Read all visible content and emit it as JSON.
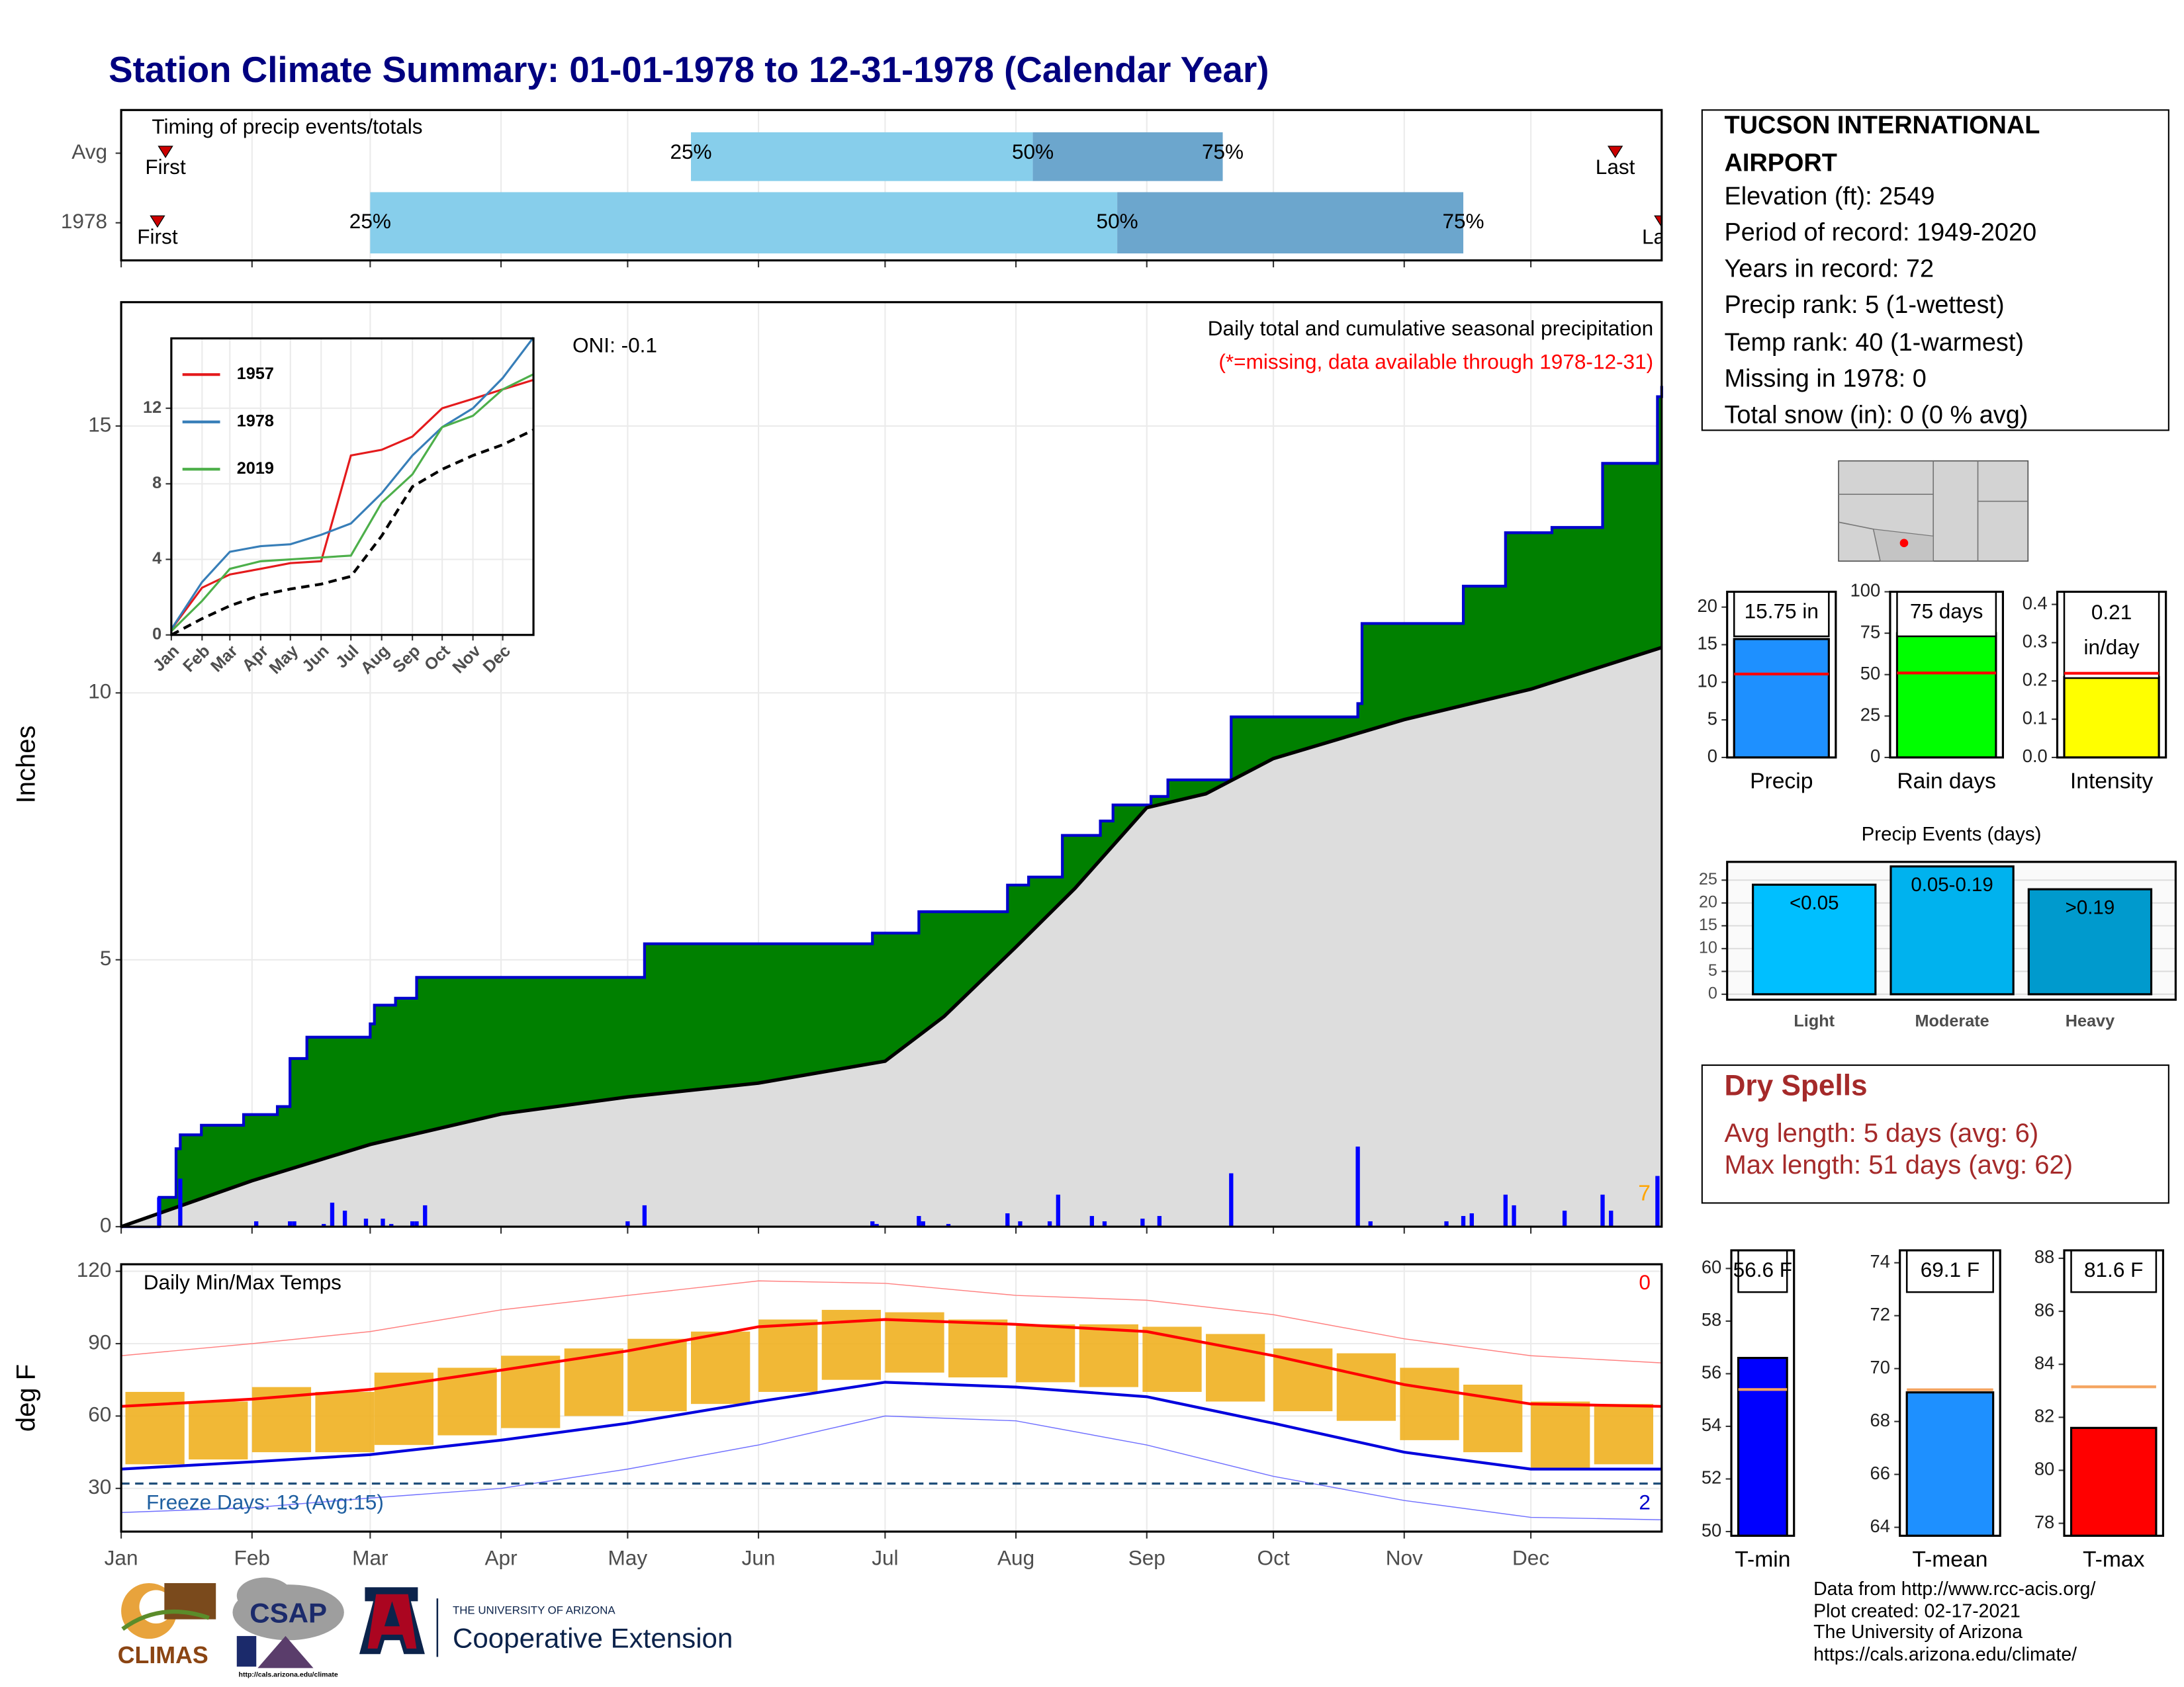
{
  "title": "Station Climate Summary: 01-01-1978 to 12-31-1978 (Calendar Year)",
  "station": {
    "name_lines": [
      "TUCSON INTERNATIONAL",
      "AIRPORT"
    ],
    "lines": [
      "Elevation (ft): 2549",
      "Period of record: 1949-2020",
      "Years in record: 72",
      "Precip rank: 5 (1-wettest)",
      "Temp rank: 40 (1-warmest)",
      "Missing in 1978: 0",
      "Total snow (in): 0 (0 % avg)"
    ]
  },
  "dry_spells": {
    "title": "Dry Spells",
    "lines": [
      "Avg length: 5 days (avg: 6)",
      "Max length: 51 days (avg: 62)"
    ]
  },
  "credits": [
    "Data from http://www.rcc-acis.org/",
    "Plot created: 02-17-2021",
    "The University of Arizona",
    "https://cals.arizona.edu/climate/"
  ],
  "logos": {
    "climas": "CLIMAS",
    "csap": "CSAP",
    "csap_url": "http://cals.arizona.edu/climate",
    "university": "THE UNIVERSITY OF ARIZONA",
    "extension": "Cooperative Extension"
  },
  "chart_data": [
    {
      "type": "timing",
      "title": "Timing of precip events/totals",
      "xlim": [
        0,
        365
      ],
      "rows": [
        "Avg",
        "1978"
      ],
      "first": [
        10.5,
        8.6
      ],
      "q25": [
        135,
        59
      ],
      "q50": [
        216,
        236
      ],
      "q75": [
        261,
        318
      ],
      "last": [
        354,
        365
      ],
      "labels": {
        "first": "First",
        "last": "Last",
        "q25": "25%",
        "q50": "50%",
        "q75": "75%"
      },
      "colors": [
        "#87ceeb",
        "#6ca6cd"
      ],
      "marker_color": "#cc0000"
    },
    {
      "type": "cumulative",
      "title": "Daily total and cumulative seasonal precipitation",
      "note": "(*=missing, data available through 1978-12-31)",
      "annotation": "ONI: -0.1",
      "records": "7",
      "ylabel": "Inches",
      "xlim": [
        0,
        365
      ],
      "ylim": [
        0,
        17.32
      ],
      "yticks": [
        0,
        5,
        10,
        15
      ],
      "grid": true,
      "series": [
        {
          "color": "#008000",
          "line_color": "#0000cd",
          "x": [
            0,
            9,
            13,
            14,
            19,
            29,
            37,
            40,
            44,
            59,
            60,
            65,
            70,
            124,
            178,
            189,
            210,
            215,
            223,
            232,
            235,
            244,
            248,
            263,
            293,
            294,
            318,
            328,
            339,
            351,
            364,
            365
          ],
          "values": [
            0,
            0.55,
            1.46,
            1.72,
            1.9,
            2.1,
            2.25,
            3.15,
            3.55,
            3.8,
            4.15,
            4.28,
            4.67,
            5.3,
            5.5,
            5.9,
            6.4,
            6.55,
            7.33,
            7.6,
            7.9,
            8.06,
            8.37,
            9.55,
            9.8,
            11.3,
            12.0,
            13.0,
            13.1,
            14.3,
            15.55,
            15.75
          ]
        },
        {
          "color": "#dddddd",
          "line_color": "#000000",
          "x": [
            0,
            31,
            59,
            90,
            120,
            151,
            181,
            195,
            212,
            226,
            243,
            257,
            273,
            304,
            334,
            365
          ],
          "values": [
            0,
            0.86,
            1.54,
            2.11,
            2.43,
            2.69,
            3.1,
            3.94,
            5.24,
            6.34,
            7.85,
            8.11,
            8.77,
            9.5,
            10.07,
            10.85
          ]
        }
      ],
      "daily": {
        "color": "#0000ff",
        "x": [
          9,
          14,
          32,
          40,
          41,
          48,
          50,
          53,
          58,
          62,
          64,
          69,
          70,
          72,
          120,
          124,
          178,
          179,
          189,
          190,
          196,
          210,
          213,
          220,
          222,
          230,
          233,
          242,
          246,
          263,
          293,
          296,
          314,
          318,
          320,
          328,
          330,
          342,
          351,
          353,
          364
        ],
        "values": [
          0.55,
          0.9,
          0.1,
          0.1,
          0.1,
          0.05,
          0.45,
          0.3,
          0.15,
          0.15,
          0.05,
          0.1,
          0.1,
          0.4,
          0.1,
          0.4,
          0.1,
          0.05,
          0.2,
          0.1,
          0.05,
          0.25,
          0.1,
          0.1,
          0.6,
          0.2,
          0.1,
          0.15,
          0.2,
          1.0,
          1.5,
          0.1,
          0.1,
          0.2,
          0.25,
          0.6,
          0.4,
          0.3,
          0.6,
          0.3,
          0.95
        ]
      }
    },
    {
      "type": "line",
      "xlim": [
        0,
        365
      ],
      "ylim": [
        0,
        15.7
      ],
      "yticks": [
        0,
        4,
        8,
        12
      ],
      "grid": true,
      "xticks": [
        {
          "value": 0,
          "label": "Jan"
        },
        {
          "value": 31,
          "label": "Feb"
        },
        {
          "value": 59,
          "label": "Mar"
        },
        {
          "value": 90,
          "label": "Apr"
        },
        {
          "value": 120,
          "label": "May"
        },
        {
          "value": 151,
          "label": "Jun"
        },
        {
          "value": 181,
          "label": "Jul"
        },
        {
          "value": 212,
          "label": "Aug"
        },
        {
          "value": 243,
          "label": "Sep"
        },
        {
          "value": 273,
          "label": "Oct"
        },
        {
          "value": 304,
          "label": "Nov"
        },
        {
          "value": 334,
          "label": "Dec"
        }
      ],
      "x": [
        0,
        31,
        59,
        90,
        120,
        151,
        181,
        212,
        243,
        273,
        304,
        334,
        365
      ],
      "series": [
        {
          "name": "1957",
          "color": "#e41a1c",
          "values": [
            0.3,
            2.5,
            3.2,
            3.5,
            3.8,
            3.9,
            9.5,
            9.8,
            10.5,
            12,
            12.5,
            13,
            13.5
          ]
        },
        {
          "name": "1978",
          "color": "#377eb8",
          "values": [
            0.3,
            2.8,
            4.4,
            4.7,
            4.8,
            5.3,
            5.9,
            7.5,
            9.5,
            11,
            12,
            13.6,
            15.75
          ]
        },
        {
          "name": "2019",
          "color": "#4daf4a",
          "values": [
            0.2,
            1.8,
            3.5,
            3.9,
            4.0,
            4.1,
            4.2,
            7.0,
            8.5,
            11,
            11.6,
            13,
            13.8
          ]
        },
        {
          "color": "#000000",
          "dash": true,
          "values": [
            0,
            0.86,
            1.54,
            2.11,
            2.43,
            2.69,
            3.1,
            5.24,
            7.85,
            8.77,
            9.5,
            10.07,
            10.85
          ]
        }
      ]
    },
    {
      "type": "temps",
      "title": "Daily Min/Max Temps",
      "ylabel": "deg F",
      "xlim": [
        0,
        365
      ],
      "ylim": [
        12.1,
        122.9
      ],
      "yticks": [
        30,
        60,
        90,
        120
      ],
      "grid": true,
      "xticks": [
        {
          "value": 0,
          "label": "Jan"
        },
        {
          "value": 31,
          "label": "Feb"
        },
        {
          "value": 59,
          "label": "Mar"
        },
        {
          "value": 90,
          "label": "Apr"
        },
        {
          "value": 120,
          "label": "May"
        },
        {
          "value": 151,
          "label": "Jun"
        },
        {
          "value": 181,
          "label": "Jul"
        },
        {
          "value": 212,
          "label": "Aug"
        },
        {
          "value": 243,
          "label": "Sep"
        },
        {
          "value": 273,
          "label": "Oct"
        },
        {
          "value": 304,
          "label": "Nov"
        },
        {
          "value": 334,
          "label": "Dec"
        }
      ],
      "freeze_line": 32,
      "freeze_label": "Freeze Days: 13 (Avg:15)",
      "record_high_count": "0",
      "record_low_count": "2",
      "daily": {
        "color": "#f0b020",
        "x": [
          8,
          23,
          38,
          53,
          67,
          82,
          97,
          112,
          127,
          142,
          158,
          173,
          188,
          203,
          219,
          234,
          249,
          264,
          280,
          295,
          310,
          325,
          341,
          356
        ],
        "max": [
          70,
          66,
          72,
          70,
          78,
          80,
          85,
          88,
          92,
          95,
          100,
          104,
          103,
          100,
          98,
          98,
          97,
          94,
          88,
          86,
          80,
          73,
          66,
          65
        ],
        "min": [
          40,
          42,
          45,
          45,
          48,
          52,
          55,
          60,
          62,
          65,
          70,
          75,
          78,
          76,
          74,
          72,
          70,
          66,
          62,
          58,
          50,
          45,
          38,
          40
        ]
      },
      "x": [
        0,
        31,
        59,
        90,
        120,
        151,
        181,
        212,
        243,
        273,
        304,
        334,
        365
      ],
      "series": [
        {
          "color": "#ff8080",
          "width": 0.7,
          "values": [
            85,
            90,
            95,
            104,
            110,
            116,
            115,
            110,
            108,
            102,
            92,
            85,
            82
          ]
        },
        {
          "color": "#7070ff",
          "width": 0.7,
          "values": [
            20,
            22,
            26,
            30,
            38,
            48,
            60,
            58,
            48,
            35,
            25,
            18,
            17
          ]
        },
        {
          "color": "#ff0000",
          "width": 2,
          "values": [
            64,
            67,
            71,
            79,
            87,
            97,
            100,
            98,
            95,
            85,
            73,
            65,
            64
          ]
        },
        {
          "color": "#0000dd",
          "width": 2,
          "values": [
            38,
            41,
            44,
            50,
            57,
            66,
            74,
            72,
            68,
            57,
            45,
            38,
            38
          ]
        }
      ]
    },
    {
      "type": "summary_bar",
      "categories": [
        "Precip"
      ],
      "values": [
        15.75
      ],
      "value_labels": [
        "15.75 in"
      ],
      "average": 11.1,
      "ylim": [
        0,
        22.04
      ],
      "yticks": [
        0,
        5,
        10,
        15,
        20
      ],
      "color": "#1e90ff",
      "average_color": "#ff0000"
    },
    {
      "type": "summary_bar",
      "categories": [
        "Rain days"
      ],
      "values": [
        75
      ],
      "value_labels": [
        "75 days"
      ],
      "average": 51,
      "ylim": [
        0,
        100
      ],
      "yticks": [
        0,
        25,
        50,
        75,
        100
      ],
      "color": "#00ff00",
      "average_color": "#ff0000"
    },
    {
      "type": "summary_bar",
      "categories": [
        "Intensity"
      ],
      "values": [
        0.21
      ],
      "value_labels": [
        "0.21 in/day"
      ],
      "average": 0.22,
      "ylim": [
        0,
        0.433
      ],
      "yticks": [
        {
          "value": 0,
          "label": "0.0"
        },
        0.1,
        0.2,
        0.3,
        0.4
      ],
      "color": "#ffff00",
      "average_color": "#ff0000"
    },
    {
      "type": "bar",
      "title": "Precip Events (days)",
      "categories": [
        "Light",
        "Moderate",
        "Heavy"
      ],
      "values": [
        24,
        28,
        23
      ],
      "bar_labels": [
        "<0.05",
        "0.05-0.19",
        ">0.19"
      ],
      "colors": [
        "#00bfff",
        "#00b2ee",
        "#009acd"
      ],
      "ylim": [
        -1.2,
        29
      ],
      "yticks": [
        0,
        5,
        10,
        15,
        20,
        25
      ],
      "grid": true
    },
    {
      "type": "summary_bar",
      "categories": [
        "T-min"
      ],
      "values": [
        56.6
      ],
      "value_labels": [
        "56.6 F"
      ],
      "average": 55.4,
      "ylim": [
        49.84,
        60.69
      ],
      "yticks": [
        50,
        52,
        54,
        56,
        58,
        60
      ],
      "color": "#0000ff",
      "average_color": "#f4a460"
    },
    {
      "type": "summary_bar",
      "categories": [
        "T-mean"
      ],
      "values": [
        69.1
      ],
      "value_labels": [
        "69.1 F"
      ],
      "average": 69.2,
      "ylim": [
        63.68,
        74.47
      ],
      "yticks": [
        64,
        66,
        68,
        70,
        72,
        74
      ],
      "color": "#1e90ff",
      "average_color": "#f4a460"
    },
    {
      "type": "summary_bar",
      "categories": [
        "T-max"
      ],
      "values": [
        81.6
      ],
      "value_labels": [
        "81.6 F"
      ],
      "average": 83.15,
      "ylim": [
        77.53,
        88.3
      ],
      "yticks": [
        78,
        80,
        82,
        84,
        86,
        88
      ],
      "color": "#ff0000",
      "average_color": "#f4a460"
    }
  ]
}
